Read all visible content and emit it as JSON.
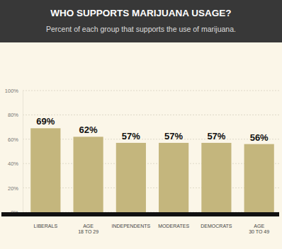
{
  "chart_data": {
    "type": "bar",
    "title": "WHO SUPPORTS MARIJUANA USAGE?",
    "subtitle": "Percent of each group that supports the use of marijuana.",
    "categories": [
      "LIBERALS",
      "AGE 18 TO 29",
      "INDEPENDENTS",
      "MODERATES",
      "DEMOCRATS",
      "AGE 30 TO 49"
    ],
    "values": [
      69,
      62,
      57,
      57,
      57,
      56
    ],
    "value_labels": [
      "69%",
      "62%",
      "57%",
      "57%",
      "57%",
      "56%"
    ],
    "color": "#c4b67d",
    "ylim": [
      0,
      100
    ],
    "yticks": [
      {
        "value": 0,
        "label": "0%"
      },
      {
        "value": 20,
        "label": "20%"
      },
      {
        "value": 40,
        "label": "40%"
      },
      {
        "value": 60,
        "label": "60%"
      },
      {
        "value": 80,
        "label": "80%"
      },
      {
        "value": 100,
        "label": "100%"
      }
    ],
    "grid": true,
    "data_labels": true
  }
}
